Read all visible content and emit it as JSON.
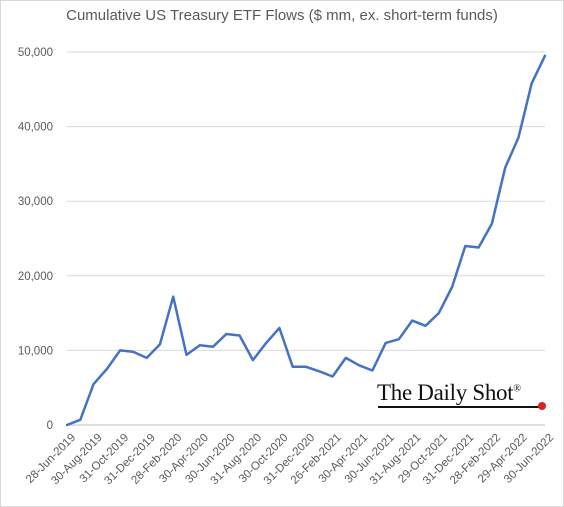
{
  "chart_data": {
    "type": "line",
    "title": "Cumulative US Treasury ETF Flows ($ mm, ex. short-term funds)",
    "xlabel": "",
    "ylabel": "",
    "ylim": [
      0,
      50000
    ],
    "yticks": [
      0,
      10000,
      20000,
      30000,
      40000,
      50000
    ],
    "ytick_labels": [
      "0",
      "10,000",
      "20,000",
      "30,000",
      "40,000",
      "50,000"
    ],
    "xtick_labels": [
      "28-Jun-2019",
      "30-Aug-2019",
      "31-Oct-2019",
      "31-Dec-2019",
      "28-Feb-2020",
      "30-Apr-2020",
      "30-Jun-2020",
      "31-Aug-2020",
      "30-Oct-2020",
      "31-Dec-2020",
      "26-Feb-2021",
      "30-Apr-2021",
      "30-Jun-2021",
      "31-Aug-2021",
      "29-Oct-2021",
      "31-Dec-2021",
      "28-Feb-2022",
      "29-Apr-2022",
      "30-Jun-2022"
    ],
    "grid": "horizontal",
    "legend": "none",
    "colors": {
      "series": "#4472c4",
      "grid": "#d9d9d9",
      "text": "#595959"
    },
    "x": [
      "28-Jun-2019",
      "31-Jul-2019",
      "30-Aug-2019",
      "30-Sep-2019",
      "31-Oct-2019",
      "29-Nov-2019",
      "31-Dec-2019",
      "31-Jan-2020",
      "28-Feb-2020",
      "31-Mar-2020",
      "30-Apr-2020",
      "29-May-2020",
      "30-Jun-2020",
      "31-Jul-2020",
      "31-Aug-2020",
      "30-Sep-2020",
      "30-Oct-2020",
      "30-Nov-2020",
      "31-Dec-2020",
      "29-Jan-2021",
      "26-Feb-2021",
      "31-Mar-2021",
      "30-Apr-2021",
      "28-May-2021",
      "30-Jun-2021",
      "30-Jul-2021",
      "31-Aug-2021",
      "30-Sep-2021",
      "29-Oct-2021",
      "30-Nov-2021",
      "31-Dec-2021",
      "31-Jan-2022",
      "28-Feb-2022",
      "31-Mar-2022",
      "29-Apr-2022",
      "31-May-2022",
      "30-Jun-2022"
    ],
    "series": [
      {
        "values": [
          0,
          700,
          5500,
          7500,
          10000,
          9800,
          9000,
          10800,
          17200,
          9400,
          10700,
          10500,
          12200,
          12000,
          8700,
          11000,
          13000,
          7800,
          7800,
          7200,
          6500,
          9000,
          8000,
          7300,
          11000,
          11500,
          14000,
          13300,
          15000,
          18500,
          24000,
          23800,
          27000,
          34500,
          38500,
          45800,
          49500
        ]
      }
    ]
  },
  "watermark": {
    "text": "The Daily Shot",
    "mark": "®",
    "dot_color": "#e02020"
  }
}
